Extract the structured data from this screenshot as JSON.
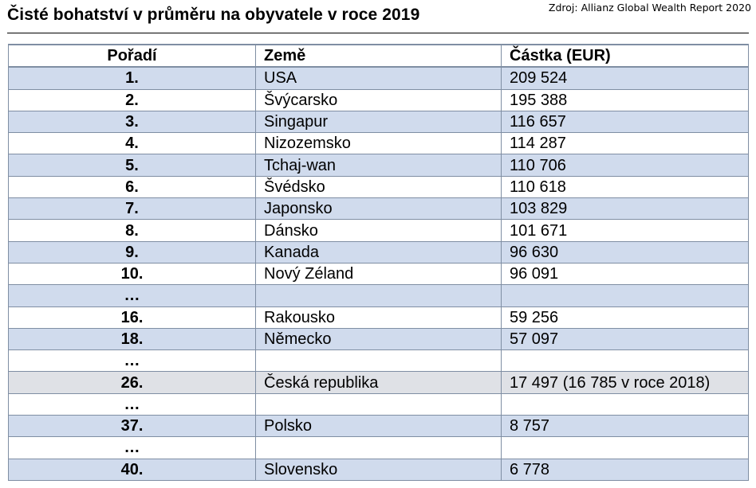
{
  "title": "Čisté bohatství v průměru na obyvatele v roce 2019",
  "source": "Zdroj: Allianz Global Wealth Report 2020",
  "table": {
    "headers": {
      "rank": "Pořadí",
      "country": "Země",
      "amount": "Částka (EUR)"
    },
    "rows": [
      {
        "rank": "1.",
        "country": "USA",
        "amount": "209 524"
      },
      {
        "rank": "2.",
        "country": "Švýcarsko",
        "amount": "195 388"
      },
      {
        "rank": "3.",
        "country": "Singapur",
        "amount": "116 657"
      },
      {
        "rank": "4.",
        "country": "Nizozemsko",
        "amount": "114 287"
      },
      {
        "rank": "5.",
        "country": "Tchaj-wan",
        "amount": "110 706"
      },
      {
        "rank": "6.",
        "country": "Švédsko",
        "amount": "110 618"
      },
      {
        "rank": "7.",
        "country": "Japonsko",
        "amount": "103 829"
      },
      {
        "rank": "8.",
        "country": "Dánsko",
        "amount": "101 671"
      },
      {
        "rank": "9.",
        "country": "Kanada",
        "amount": "96 630"
      },
      {
        "rank": "10.",
        "country": "Nový Zéland",
        "amount": "96 091"
      },
      {
        "rank": "…",
        "country": "",
        "amount": ""
      },
      {
        "rank": "16.",
        "country": "Rakousko",
        "amount": "59 256"
      },
      {
        "rank": "18.",
        "country": "Německo",
        "amount": "57 097"
      },
      {
        "rank": "…",
        "country": "",
        "amount": ""
      },
      {
        "rank": "26.",
        "country": "Česká republika",
        "amount": "17 497 (16 785 v roce 2018)",
        "highlight": true
      },
      {
        "rank": "…",
        "country": "",
        "amount": ""
      },
      {
        "rank": "37.",
        "country": "Polsko",
        "amount": "8 757"
      },
      {
        "rank": "…",
        "country": "",
        "amount": ""
      },
      {
        "rank": "40.",
        "country": "Slovensko",
        "amount": "6 778"
      }
    ]
  }
}
